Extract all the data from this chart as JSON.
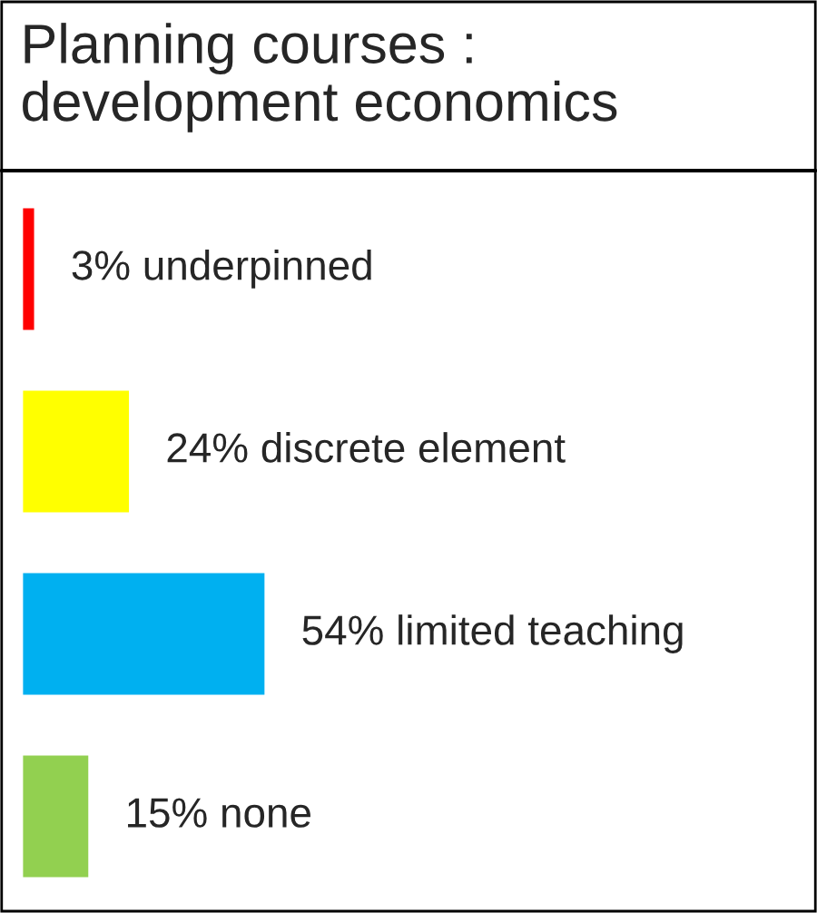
{
  "chart_data": {
    "type": "bar",
    "orientation": "horizontal",
    "title": "Planning courses :\ndevelopment economics",
    "categories": [
      null,
      null,
      null,
      null
    ],
    "values": [
      3,
      24,
      54,
      15
    ],
    "colors": [
      "#ff0000",
      "#ffff00",
      "#00b0f0",
      "#92d050"
    ],
    "value_labels": [
      "3% underpinned",
      "24% discrete element",
      "54% limited teaching",
      "15% none"
    ]
  }
}
